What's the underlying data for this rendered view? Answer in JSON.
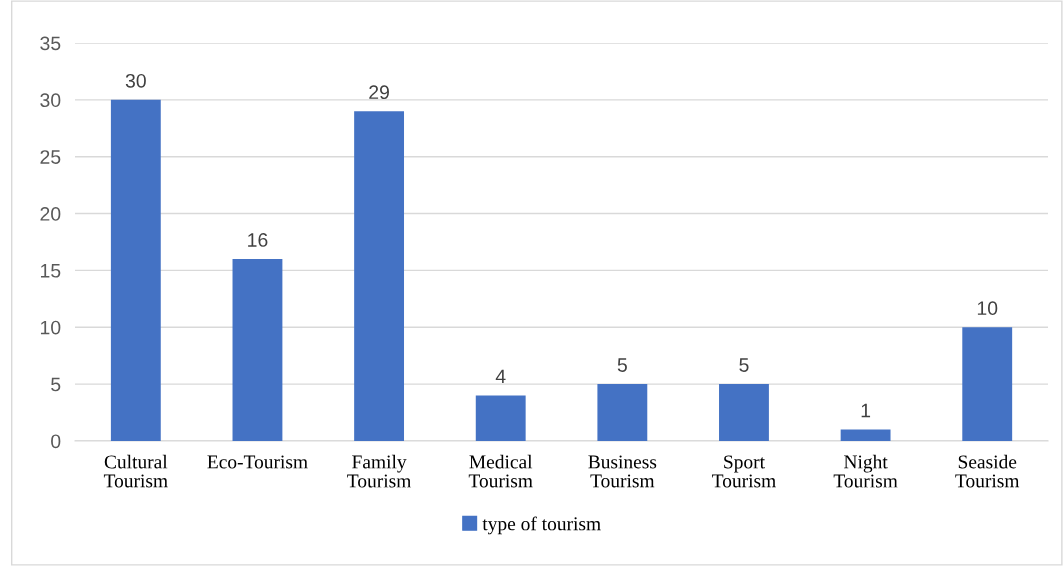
{
  "chart_data": {
    "type": "bar",
    "categories": [
      "Cultural\nTourism",
      "Eco-Tourism",
      "Family\nTourism",
      "Medical\nTourism",
      "Business\nTourism",
      "Sport\nTourism",
      "Night\nTourism",
      "Seaside\nTourism"
    ],
    "series": [
      {
        "name": "type of tourism",
        "color": "#4472c4",
        "values": [
          30,
          16,
          29,
          4,
          5,
          5,
          1,
          10
        ]
      }
    ],
    "ylim": [
      0,
      35
    ],
    "yticks": [
      0,
      5,
      10,
      15,
      20,
      25,
      30,
      35
    ],
    "grid": "y",
    "legend": "bottom",
    "data_labels": true
  }
}
